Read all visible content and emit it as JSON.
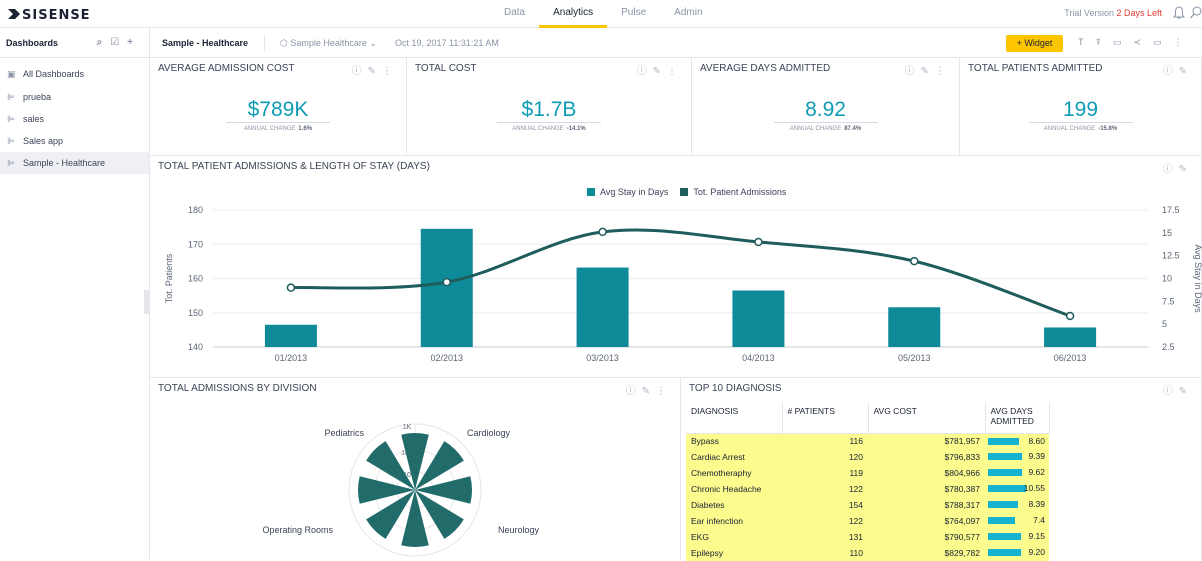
{
  "app": {
    "logo_text": "SISENSE"
  },
  "top_nav": {
    "tabs": [
      "Data",
      "Analytics",
      "Pulse",
      "Admin"
    ],
    "active": "Analytics"
  },
  "trial": {
    "label": "Trial Version",
    "days_left": "2 Days Left"
  },
  "sidebar": {
    "title": "Dashboards",
    "all_label": "All Dashboards",
    "items": [
      "prueba",
      "sales",
      "Sales app",
      "Sample - Healthcare"
    ],
    "selected": "Sample - Healthcare"
  },
  "dashboard": {
    "title": "Sample - Healthcare",
    "datasource": "Sample Healthcare",
    "datetime": "Oct 19, 2017 11:31:21 AM",
    "widget_button": "+ Widget"
  },
  "kpis": [
    {
      "title": "AVERAGE ADMISSION COST",
      "value": "$789K",
      "change_label": "ANNUAL CHANGE",
      "change": "1.6%"
    },
    {
      "title": "TOTAL COST",
      "value": "$1.7B",
      "change_label": "ANNUAL CHANGE",
      "change": "-14.1%"
    },
    {
      "title": "AVERAGE DAYS ADMITTED",
      "value": "8.92",
      "change_label": "ANNUAL CHANGE",
      "change": "87.4%"
    },
    {
      "title": "TOTAL PATIENTS ADMITTED",
      "value": "199",
      "change_label": "ANNUAL CHANGE",
      "change": "-15.8%"
    }
  ],
  "charts": {
    "admissions_title": "TOTAL PATIENT ADMISSIONS & LENGTH OF STAY (DAYS)",
    "division_title": "TOTAL ADMISSIONS BY DIVISION",
    "top10_title": "TOP 10 DIAGNOSIS"
  },
  "colors": {
    "accent": "#fcc500",
    "teal": "#0e8a99",
    "dark_teal": "#1f5c5c",
    "kpi": "#0e9cb5",
    "highlight": "#fbfb8e",
    "bar": "#16b3d1"
  },
  "chart_data": [
    {
      "type": "bar",
      "title": "TOTAL PATIENT ADMISSIONS & LENGTH OF STAY (DAYS)",
      "categories": [
        "01/2013",
        "02/2013",
        "03/2013",
        "04/2013",
        "05/2013",
        "06/2013"
      ],
      "series": [
        {
          "name": "Tot. Patient Admissions",
          "type": "bar",
          "axis": "left",
          "values": [
            146.5,
            174.5,
            163.2,
            156.5,
            151.6,
            145.7
          ]
        },
        {
          "name": "Avg Stay in Days",
          "type": "line",
          "axis": "right",
          "values": [
            9.0,
            9.6,
            15.1,
            14.0,
            11.9,
            5.9
          ]
        }
      ],
      "ylabel": "Tot. Patients",
      "y2label": "Avg Stay in Days",
      "ylim": [
        140,
        180
      ],
      "y2lim": [
        2.5,
        17.5
      ],
      "yticks": [
        140,
        150,
        160,
        170,
        180
      ],
      "y2ticks": [
        "2.5",
        "5",
        "7.5",
        "10",
        "12.5",
        "15",
        "17.5"
      ],
      "legend": "top-center"
    },
    {
      "type": "polar-bar",
      "title": "TOTAL ADMISSIONS BY DIVISION",
      "categories": [
        "Cardiology",
        "Neurology",
        "Operating Rooms",
        "Pediatrics"
      ],
      "radial_ticks": [
        "1K",
        "100",
        "10"
      ]
    }
  ],
  "diagnosis_table": {
    "headers": [
      "DIAGNOSIS",
      "# PATIENTS",
      "AVG COST",
      "AVG DAYS ADMITTED"
    ],
    "rows": [
      {
        "diagnosis": "Bypass",
        "patients": "116",
        "cost": "$781,957",
        "days": "8.60",
        "days_num": 8.6
      },
      {
        "diagnosis": "Cardiac Arrest",
        "patients": "120",
        "cost": "$796,833",
        "days": "9.39",
        "days_num": 9.39
      },
      {
        "diagnosis": "Chemotheraphy",
        "patients": "119",
        "cost": "$804,966",
        "days": "9.62",
        "days_num": 9.62
      },
      {
        "diagnosis": "Chronic Headache",
        "patients": "122",
        "cost": "$780,387",
        "days": "10.55",
        "days_num": 10.55
      },
      {
        "diagnosis": "Diabetes",
        "patients": "154",
        "cost": "$788,317",
        "days": "8.39",
        "days_num": 8.39
      },
      {
        "diagnosis": "Ear infenction",
        "patients": "122",
        "cost": "$764,097",
        "days": "7.4",
        "days_num": 7.4
      },
      {
        "diagnosis": "EKG",
        "patients": "131",
        "cost": "$790,577",
        "days": "9.15",
        "days_num": 9.15
      },
      {
        "diagnosis": "Epilepsy",
        "patients": "110",
        "cost": "$829,782",
        "days": "9.20",
        "days_num": 9.2
      }
    ]
  }
}
